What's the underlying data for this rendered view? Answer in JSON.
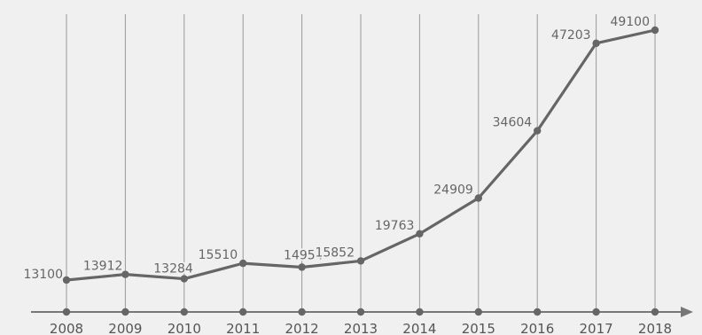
{
  "chart_data": {
    "type": "line",
    "x": [
      "2008",
      "2009",
      "2010",
      "2011",
      "2012",
      "2013",
      "2014",
      "2015",
      "2016",
      "2017",
      "2018"
    ],
    "series": [
      {
        "values": [
          13100,
          13912,
          13284,
          15510,
          14954,
          15852,
          19763,
          24909,
          34604,
          47203,
          49100
        ]
      }
    ],
    "data_labels": [
      "13100",
      "13912",
      "13284",
      "15510",
      "14954",
      "15852",
      "19763",
      "24909",
      "34604",
      "47203",
      "49100"
    ],
    "grid": "vertical",
    "y_axis_shown": false,
    "colors": {
      "background": "#f0f0f0",
      "line": "#666666",
      "grid": "#999999",
      "axis": "#777777",
      "text": "#555555"
    }
  }
}
